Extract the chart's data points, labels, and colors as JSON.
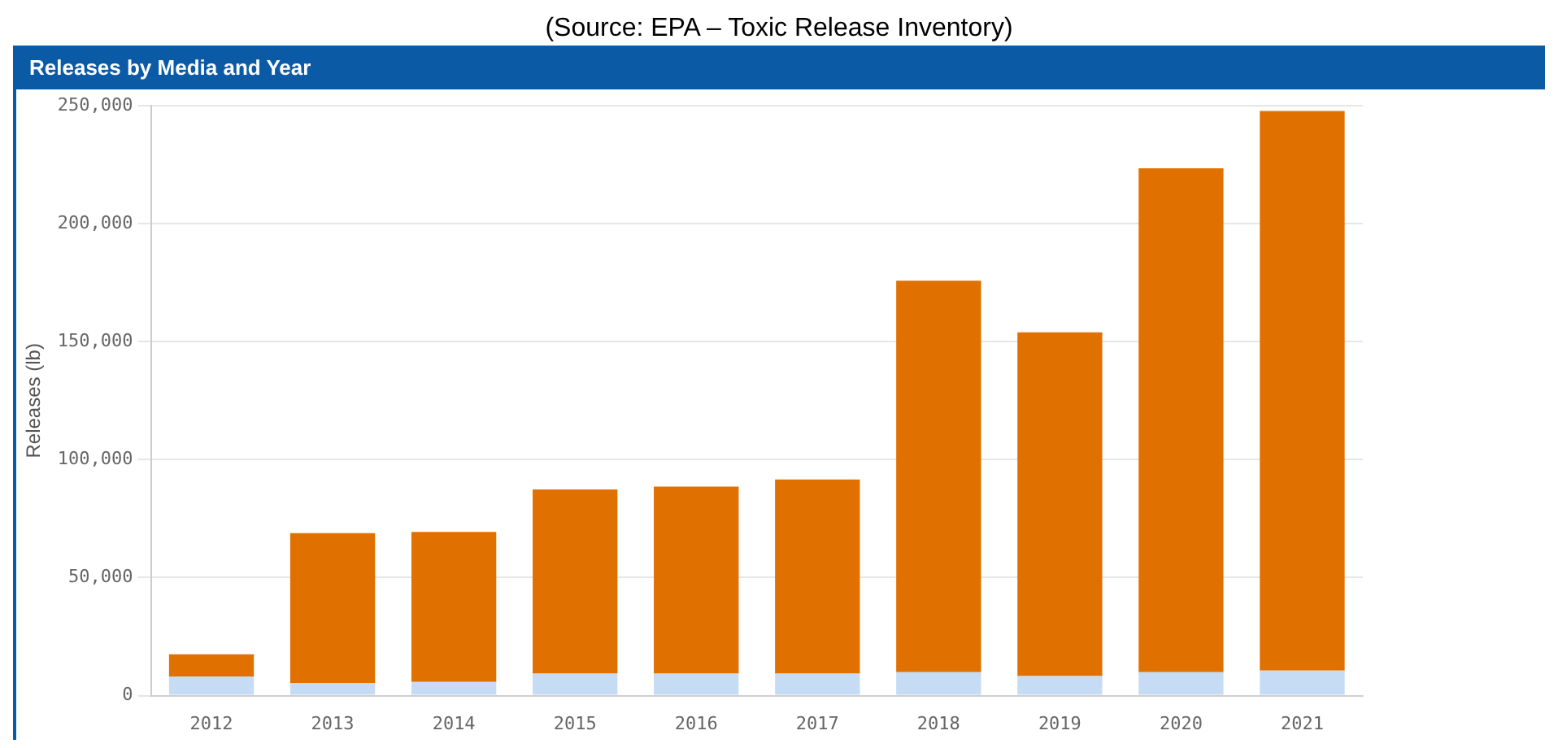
{
  "chart_data": {
    "type": "bar",
    "title": "Releases by Media and Year",
    "ylabel": "Releases (lb)",
    "annotations": [
      "(Source: EPA – Toxic Release Inventory)"
    ],
    "categories": [
      "2012",
      "2013",
      "2014",
      "2015",
      "2016",
      "2017",
      "2018",
      "2019",
      "2020",
      "2021"
    ],
    "series": [
      {
        "color": "#c6dcf5",
        "values": [
          8100,
          5300,
          5800,
          9300,
          9300,
          9300,
          9900,
          8300,
          9900,
          10600
        ]
      },
      {
        "color": "#e07000",
        "values": [
          9400,
          63600,
          63600,
          78100,
          79300,
          82300,
          165900,
          145700,
          213600,
          237200
        ]
      }
    ],
    "stacked": true,
    "ylim": [
      0,
      250000
    ],
    "yticks": [
      {
        "value": 0,
        "label": "0"
      },
      {
        "value": 50000,
        "label": "50,000"
      },
      {
        "value": 100000,
        "label": "100,000"
      },
      {
        "value": 150000,
        "label": "150,000"
      },
      {
        "value": 200000,
        "label": "200,000"
      },
      {
        "value": 250000,
        "label": "250,000"
      }
    ],
    "grid": "y",
    "legend": false
  }
}
